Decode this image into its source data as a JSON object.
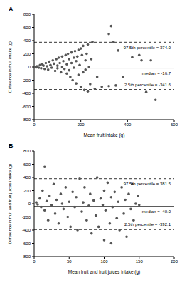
{
  "chart_data": [
    {
      "type": "scatter",
      "title": "A",
      "x_label": "Mean fruit intake (g)",
      "y_label": "Difference in fruit intake (g)",
      "xlim": [
        0,
        600
      ],
      "xticks": [
        0,
        200,
        400,
        600
      ],
      "ylim": [
        -800,
        800
      ],
      "yticks": [
        -800,
        -600,
        -400,
        -200,
        0,
        200,
        400,
        600,
        800
      ],
      "grid": false,
      "color": "#555555",
      "marker": "circle",
      "x": [
        5,
        10,
        12,
        20,
        25,
        30,
        35,
        40,
        45,
        50,
        55,
        60,
        65,
        70,
        75,
        80,
        85,
        90,
        95,
        100,
        100,
        105,
        110,
        115,
        120,
        120,
        125,
        130,
        135,
        140,
        140,
        145,
        150,
        150,
        155,
        160,
        160,
        165,
        170,
        170,
        175,
        180,
        180,
        185,
        190,
        190,
        195,
        200,
        200,
        205,
        210,
        210,
        215,
        220,
        220,
        225,
        230,
        230,
        235,
        240,
        245,
        250,
        260,
        270,
        290,
        320,
        330,
        340,
        350,
        360,
        380,
        420,
        450,
        460,
        480,
        500,
        520,
        320
      ],
      "values": [
        0,
        -5,
        10,
        -10,
        30,
        -20,
        40,
        20,
        -30,
        60,
        10,
        -40,
        80,
        30,
        -10,
        100,
        50,
        -60,
        120,
        20,
        -20,
        140,
        60,
        -80,
        160,
        0,
        90,
        -30,
        180,
        40,
        -100,
        200,
        120,
        -50,
        -150,
        220,
        60,
        -200,
        140,
        -10,
        240,
        -250,
        90,
        160,
        -120,
        260,
        30,
        -300,
        280,
        180,
        -80,
        320,
        -350,
        100,
        -40,
        200,
        -370,
        340,
        0,
        -260,
        120,
        380,
        -330,
        -150,
        -300,
        -290,
        620,
        380,
        -280,
        250,
        -150,
        150,
        180,
        100,
        -380,
        100,
        -500,
        500
      ],
      "reference_lines": [
        {
          "value": 374.9,
          "label": "97.5th percentile = 374.9",
          "line_style": "dashed"
        },
        {
          "value": -16.7,
          "label": "median = -16.7",
          "line_style": "solid"
        },
        {
          "value": -341.6,
          "label": "2.5th percentile = -341.6",
          "line_style": "dashed"
        }
      ]
    },
    {
      "type": "scatter",
      "title": "B",
      "x_label": "Mean fruit and fruit juices intake (g)",
      "y_label": "Difference in fruit and fruit juices intake (g)",
      "xlim": [
        0,
        200
      ],
      "xticks": [
        0,
        50,
        100,
        150,
        200
      ],
      "ylim": [
        -800,
        800
      ],
      "yticks": [
        -800,
        -600,
        -400,
        -200,
        0,
        200,
        400,
        600,
        800
      ],
      "grid": false,
      "color": "#555555",
      "marker": "circle",
      "x": [
        3,
        5,
        8,
        10,
        12,
        15,
        15,
        18,
        20,
        22,
        25,
        28,
        30,
        32,
        35,
        38,
        40,
        42,
        45,
        48,
        50,
        52,
        55,
        58,
        60,
        62,
        65,
        68,
        70,
        72,
        75,
        78,
        80,
        82,
        85,
        88,
        90,
        92,
        95,
        98,
        100,
        100,
        102,
        105,
        108,
        110,
        110,
        112,
        115,
        118,
        120,
        122,
        125,
        128,
        130,
        132,
        135,
        138,
        140,
        142,
        145,
        148,
        150
      ],
      "values": [
        20,
        -10,
        80,
        -50,
        200,
        -100,
        560,
        40,
        -250,
        120,
        -20,
        300,
        -150,
        60,
        -300,
        150,
        0,
        -80,
        250,
        -200,
        30,
        -350,
        180,
        -50,
        100,
        -400,
        380,
        -120,
        20,
        250,
        -250,
        -30,
        150,
        -450,
        50,
        -180,
        400,
        -350,
        80,
        -20,
        -550,
        200,
        -100,
        320,
        -300,
        -600,
        100,
        -50,
        180,
        -220,
        30,
        -400,
        250,
        -150,
        60,
        -500,
        150,
        -80,
        300,
        -250,
        0,
        120,
        -20
      ],
      "reference_lines": [
        {
          "value": 381.5,
          "label": "97.5th percentile = 381.5",
          "line_style": "dashed"
        },
        {
          "value": -40.0,
          "label": "median = -40.0",
          "line_style": "solid"
        },
        {
          "value": -392.1,
          "label": "2.5th percentile = -392.1",
          "line_style": "dashed"
        }
      ]
    }
  ]
}
